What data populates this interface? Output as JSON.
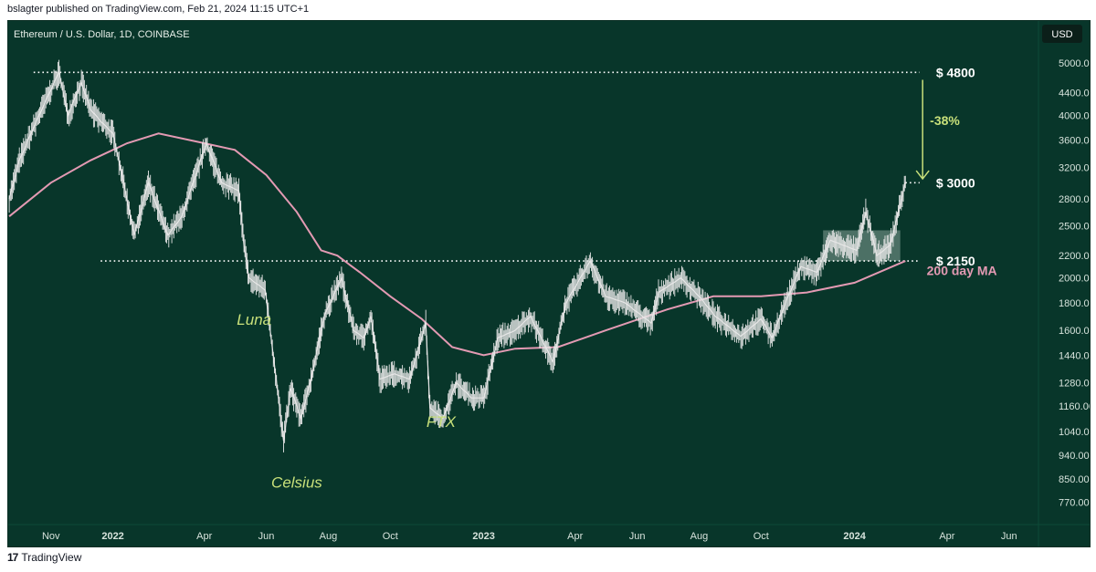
{
  "header": {
    "published_text": "bslagter published on TradingView.com, Feb 21, 2024 11:15 UTC+1"
  },
  "footer": {
    "logo_mark": "17",
    "brand": "TradingView"
  },
  "colors": {
    "background": "#08362a",
    "candles": "#e6e6e6",
    "ma": "#e39ab3",
    "annotation_green": "#c8e07a",
    "zone": "#9fb7ad"
  },
  "chart_data": {
    "type": "line",
    "title": "Ethereum / U.S. Dollar, 1D, COINBASE",
    "currency_badge": "USD",
    "y_scale": "log",
    "ylim": [
      700,
      5400
    ],
    "xlim": [
      "2021-09-20",
      "2024-06-30"
    ],
    "yticks": [
      5000,
      4400,
      4000,
      3600,
      3200,
      2800,
      2500,
      2200,
      2000,
      1800,
      1600,
      1440,
      1280,
      1160,
      1040,
      940,
      850,
      770
    ],
    "ytick_labels": [
      "5000.00",
      "4400.00",
      "4000.00",
      "3600.00",
      "3200.00",
      "2800.00",
      "2500.00",
      "2200.00",
      "2000.00",
      "1800.00",
      "1600.00",
      "1440.00",
      "1280.00",
      "1160.00",
      "1040.00",
      "940.00",
      "850.00",
      "770.00"
    ],
    "xticks": [
      {
        "date": "2021-11-01",
        "label": "Nov",
        "bold": false
      },
      {
        "date": "2022-01-01",
        "label": "2022",
        "bold": true
      },
      {
        "date": "2022-04-01",
        "label": "Apr",
        "bold": false
      },
      {
        "date": "2022-06-01",
        "label": "Jun",
        "bold": false
      },
      {
        "date": "2022-08-01",
        "label": "Aug",
        "bold": false
      },
      {
        "date": "2022-10-01",
        "label": "Oct",
        "bold": false
      },
      {
        "date": "2023-01-01",
        "label": "2023",
        "bold": true
      },
      {
        "date": "2023-04-01",
        "label": "Apr",
        "bold": false
      },
      {
        "date": "2023-06-01",
        "label": "Jun",
        "bold": false
      },
      {
        "date": "2023-08-01",
        "label": "Aug",
        "bold": false
      },
      {
        "date": "2023-10-01",
        "label": "Oct",
        "bold": false
      },
      {
        "date": "2024-01-01",
        "label": "2024",
        "bold": true
      },
      {
        "date": "2024-04-01",
        "label": "Apr",
        "bold": false
      },
      {
        "date": "2024-06-01",
        "label": "Jun",
        "bold": false
      }
    ],
    "series": [
      {
        "type": "price",
        "points": [
          [
            "2021-09-21",
            2800
          ],
          [
            "2021-10-01",
            3300
          ],
          [
            "2021-10-15",
            3800
          ],
          [
            "2021-10-28",
            4300
          ],
          [
            "2021-11-09",
            4800
          ],
          [
            "2021-11-18",
            4000
          ],
          [
            "2021-12-01",
            4600
          ],
          [
            "2021-12-10",
            4100
          ],
          [
            "2021-12-20",
            3900
          ],
          [
            "2022-01-01",
            3700
          ],
          [
            "2022-01-10",
            3100
          ],
          [
            "2022-01-22",
            2400
          ],
          [
            "2022-02-05",
            3000
          ],
          [
            "2022-02-24",
            2400
          ],
          [
            "2022-03-10",
            2600
          ],
          [
            "2022-04-03",
            3550
          ],
          [
            "2022-04-18",
            3000
          ],
          [
            "2022-05-05",
            2900
          ],
          [
            "2022-05-10",
            2300
          ],
          [
            "2022-05-15",
            2000
          ],
          [
            "2022-05-31",
            1900
          ],
          [
            "2022-06-13",
            1200
          ],
          [
            "2022-06-18",
            1000
          ],
          [
            "2022-06-25",
            1250
          ],
          [
            "2022-07-05",
            1100
          ],
          [
            "2022-07-15",
            1300
          ],
          [
            "2022-07-28",
            1700
          ],
          [
            "2022-08-14",
            2000
          ],
          [
            "2022-08-26",
            1600
          ],
          [
            "2022-09-05",
            1550
          ],
          [
            "2022-09-12",
            1700
          ],
          [
            "2022-09-21",
            1300
          ],
          [
            "2022-10-05",
            1330
          ],
          [
            "2022-10-20",
            1300
          ],
          [
            "2022-11-05",
            1650
          ],
          [
            "2022-11-09",
            1150
          ],
          [
            "2022-11-22",
            1100
          ],
          [
            "2022-12-05",
            1280
          ],
          [
            "2022-12-20",
            1200
          ],
          [
            "2023-01-01",
            1200
          ],
          [
            "2023-01-15",
            1550
          ],
          [
            "2023-02-01",
            1600
          ],
          [
            "2023-02-16",
            1700
          ],
          [
            "2023-03-10",
            1400
          ],
          [
            "2023-03-23",
            1800
          ],
          [
            "2023-04-16",
            2150
          ],
          [
            "2023-05-01",
            1850
          ],
          [
            "2023-05-20",
            1800
          ],
          [
            "2023-06-15",
            1650
          ],
          [
            "2023-06-22",
            1880
          ],
          [
            "2023-07-14",
            2000
          ],
          [
            "2023-08-01",
            1850
          ],
          [
            "2023-08-17",
            1700
          ],
          [
            "2023-09-11",
            1560
          ],
          [
            "2023-10-01",
            1680
          ],
          [
            "2023-10-12",
            1550
          ],
          [
            "2023-10-24",
            1780
          ],
          [
            "2023-11-09",
            2100
          ],
          [
            "2023-11-25",
            2050
          ],
          [
            "2023-12-08",
            2350
          ],
          [
            "2024-01-03",
            2250
          ],
          [
            "2024-01-12",
            2650
          ],
          [
            "2024-01-23",
            2200
          ],
          [
            "2024-02-05",
            2300
          ],
          [
            "2024-02-10",
            2500
          ],
          [
            "2024-02-20",
            3000
          ]
        ]
      },
      {
        "name": "200 day MA",
        "points": [
          [
            "2021-09-21",
            2600
          ],
          [
            "2021-11-01",
            3000
          ],
          [
            "2021-12-10",
            3300
          ],
          [
            "2022-01-15",
            3550
          ],
          [
            "2022-02-15",
            3700
          ],
          [
            "2022-04-01",
            3550
          ],
          [
            "2022-05-01",
            3450
          ],
          [
            "2022-06-01",
            3100
          ],
          [
            "2022-07-01",
            2650
          ],
          [
            "2022-07-25",
            2250
          ],
          [
            "2022-08-10",
            2200
          ],
          [
            "2022-09-01",
            2050
          ],
          [
            "2022-10-01",
            1850
          ],
          [
            "2022-11-01",
            1680
          ],
          [
            "2022-12-01",
            1490
          ],
          [
            "2023-01-01",
            1440
          ],
          [
            "2023-02-01",
            1480
          ],
          [
            "2023-03-15",
            1490
          ],
          [
            "2023-05-01",
            1600
          ],
          [
            "2023-07-01",
            1750
          ],
          [
            "2023-08-15",
            1850
          ],
          [
            "2023-10-01",
            1850
          ],
          [
            "2023-11-15",
            1880
          ],
          [
            "2024-01-01",
            1960
          ],
          [
            "2024-02-20",
            2150
          ]
        ]
      }
    ],
    "horizontal_levels": [
      {
        "value": 4800,
        "label": "$ 4800",
        "from": "2021-10-15",
        "to": "2024-03-05"
      },
      {
        "value": 3000,
        "label": "$ 3000",
        "from": "2024-02-20",
        "to": "2024-03-05"
      },
      {
        "value": 2150,
        "label": "$ 2150",
        "from": "2021-12-20",
        "to": "2024-03-05"
      }
    ],
    "consolidation_zone": {
      "x0": "2023-12-01",
      "x1": "2024-02-15",
      "y0": 2150,
      "y1": 2450
    },
    "arrow": {
      "date": "2024-03-08",
      "from": 4650,
      "to": 3050,
      "label": "-38%"
    },
    "annotations": [
      {
        "text": "Luna",
        "date": "2022-05-20",
        "value": 1640
      },
      {
        "text": "Celsius",
        "date": "2022-07-01",
        "value": 820
      },
      {
        "text": "FTX",
        "date": "2022-11-20",
        "value": 1060
      },
      {
        "text": "200 day MA",
        "date": "2024-03-12",
        "value": 2025
      }
    ]
  }
}
